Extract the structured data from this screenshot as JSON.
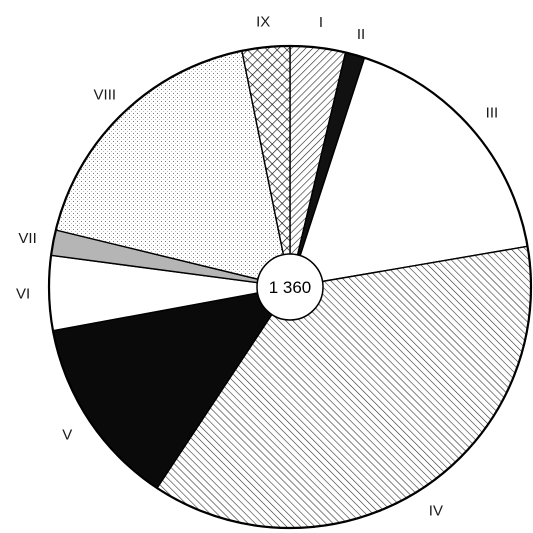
{
  "chart_data": {
    "type": "pie",
    "total_label": "1 360",
    "start_angle_deg": 0,
    "direction": "clockwise",
    "slices": [
      {
        "label": "I",
        "value": 3.7,
        "fill": "diag-left",
        "color": "#111111"
      },
      {
        "label": "II",
        "value": 1.3,
        "fill": "solid",
        "color": "#111111"
      },
      {
        "label": "III",
        "value": 17.3,
        "fill": "white",
        "color": "#ffffff"
      },
      {
        "label": "IV",
        "value": 37.0,
        "fill": "diag-right",
        "color": "#111111"
      },
      {
        "label": "V",
        "value": 12.8,
        "fill": "solid",
        "color": "#0a0a0a"
      },
      {
        "label": "VI",
        "value": 5.0,
        "fill": "white",
        "color": "#ffffff"
      },
      {
        "label": "VII",
        "value": 1.7,
        "fill": "grey",
        "color": "#b5b5b5"
      },
      {
        "label": "VIII",
        "value": 18.0,
        "fill": "dots",
        "color": "#888888"
      },
      {
        "label": "IX",
        "value": 3.2,
        "fill": "crosshatch",
        "color": "#111111"
      }
    ]
  }
}
